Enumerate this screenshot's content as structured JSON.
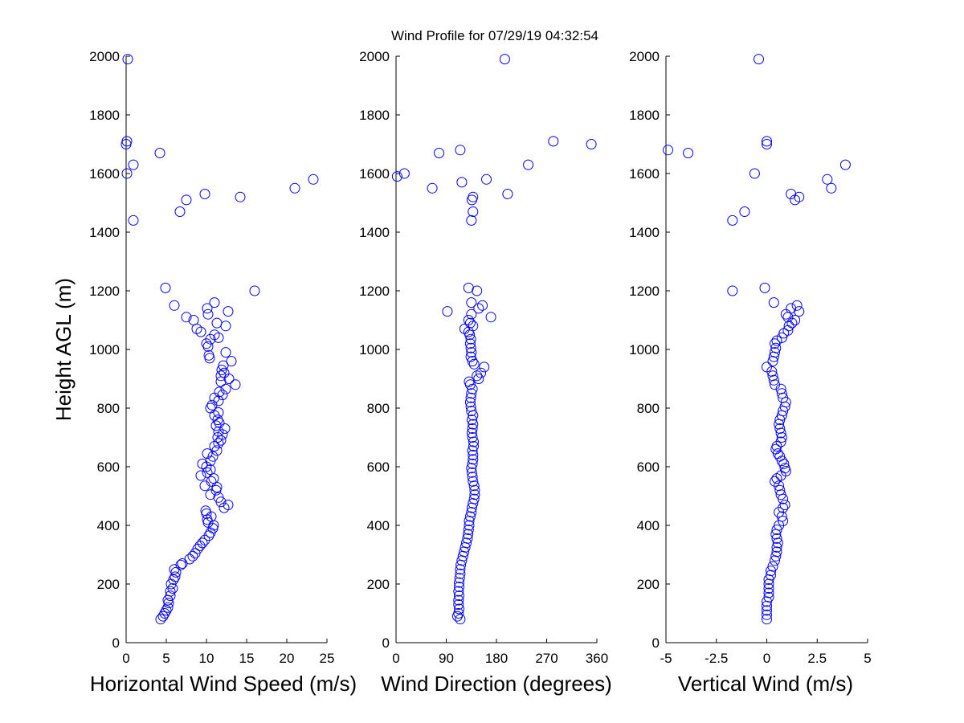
{
  "title": "Wind Profile for  07/29/19 04:32:54",
  "ylabel": "Height AGL (m)",
  "colors": {
    "marker": "#0000ff",
    "axes": "#000000",
    "background": "#ffffff"
  },
  "chart_data": [
    {
      "type": "scatter",
      "xlabel": "Horizontal Wind Speed (m/s)",
      "ylabel": "Height AGL (m)",
      "xlim": [
        0,
        25
      ],
      "ylim": [
        0,
        2000
      ],
      "xticks": [
        "0",
        "5",
        "10",
        "15",
        "20",
        "25"
      ],
      "yticks": [
        "0",
        "200",
        "400",
        "600",
        "800",
        "1000",
        "1200",
        "1400",
        "1600",
        "1800",
        "2000"
      ],
      "marker": "open-circle",
      "grid": false,
      "points": [
        [
          4.3,
          80
        ],
        [
          4.6,
          90
        ],
        [
          4.8,
          100
        ],
        [
          5.0,
          110
        ],
        [
          5.2,
          120
        ],
        [
          5.3,
          135
        ],
        [
          5.2,
          145
        ],
        [
          5.5,
          160
        ],
        [
          5.5,
          175
        ],
        [
          5.8,
          185
        ],
        [
          5.6,
          200
        ],
        [
          5.9,
          215
        ],
        [
          6.1,
          225
        ],
        [
          6.2,
          240
        ],
        [
          6.0,
          250
        ],
        [
          6.8,
          265
        ],
        [
          7.0,
          270
        ],
        [
          7.9,
          285
        ],
        [
          8.3,
          295
        ],
        [
          8.6,
          305
        ],
        [
          8.9,
          320
        ],
        [
          9.2,
          330
        ],
        [
          9.5,
          340
        ],
        [
          9.8,
          350
        ],
        [
          10.3,
          365
        ],
        [
          10.5,
          375
        ],
        [
          10.8,
          390
        ],
        [
          10.9,
          400
        ],
        [
          10.2,
          410
        ],
        [
          10.1,
          420
        ],
        [
          10.6,
          430
        ],
        [
          10.0,
          440
        ],
        [
          9.9,
          450
        ],
        [
          12.2,
          460
        ],
        [
          12.7,
          470
        ],
        [
          11.8,
          480
        ],
        [
          11.5,
          495
        ],
        [
          10.5,
          505
        ],
        [
          11.2,
          520
        ],
        [
          11.3,
          530
        ],
        [
          9.8,
          535
        ],
        [
          10.6,
          550
        ],
        [
          10.9,
          560
        ],
        [
          9.3,
          570
        ],
        [
          10.1,
          580
        ],
        [
          10.5,
          590
        ],
        [
          10.0,
          600
        ],
        [
          9.5,
          610
        ],
        [
          10.5,
          620
        ],
        [
          10.8,
          635
        ],
        [
          10.1,
          645
        ],
        [
          11.3,
          655
        ],
        [
          11.0,
          670
        ],
        [
          11.5,
          680
        ],
        [
          11.8,
          690
        ],
        [
          11.4,
          700
        ],
        [
          12.0,
          710
        ],
        [
          11.5,
          720
        ],
        [
          12.3,
          730
        ],
        [
          11.2,
          740
        ],
        [
          11.6,
          750
        ],
        [
          11.4,
          760
        ],
        [
          11.0,
          775
        ],
        [
          11.5,
          785
        ],
        [
          10.5,
          800
        ],
        [
          10.7,
          810
        ],
        [
          11.5,
          825
        ],
        [
          11.0,
          835
        ],
        [
          12.0,
          845
        ],
        [
          11.6,
          855
        ],
        [
          12.4,
          865
        ],
        [
          13.6,
          880
        ],
        [
          11.8,
          890
        ],
        [
          12.8,
          900
        ],
        [
          11.8,
          910
        ],
        [
          12.2,
          920
        ],
        [
          11.9,
          930
        ],
        [
          12.1,
          945
        ],
        [
          13.1,
          960
        ],
        [
          12.4,
          990
        ],
        [
          10.4,
          970
        ],
        [
          10.3,
          980
        ],
        [
          10.2,
          1010
        ],
        [
          10.0,
          1020
        ],
        [
          10.5,
          1035
        ],
        [
          11.5,
          1040
        ],
        [
          11.0,
          1050
        ],
        [
          9.3,
          1060
        ],
        [
          8.8,
          1070
        ],
        [
          12.4,
          1080
        ],
        [
          11.3,
          1090
        ],
        [
          8.4,
          1100
        ],
        [
          7.5,
          1110
        ],
        [
          10.2,
          1120
        ],
        [
          12.7,
          1130
        ],
        [
          10.1,
          1140
        ],
        [
          6.0,
          1150
        ],
        [
          11.0,
          1160
        ],
        [
          4.9,
          1210
        ],
        [
          16.0,
          1200
        ],
        [
          0.9,
          1440
        ],
        [
          6.7,
          1470
        ],
        [
          7.5,
          1510
        ],
        [
          14.2,
          1520
        ],
        [
          9.8,
          1530
        ],
        [
          21.0,
          1550
        ],
        [
          23.3,
          1580
        ],
        [
          0.1,
          1600
        ],
        [
          0.9,
          1630
        ],
        [
          4.2,
          1670
        ],
        [
          0.0,
          1700
        ],
        [
          0.1,
          1710
        ],
        [
          0.2,
          1990
        ]
      ]
    },
    {
      "type": "scatter",
      "xlabel": "Wind Direction (degrees)",
      "ylabel": "",
      "xlim": [
        0,
        360
      ],
      "ylim": [
        0,
        2000
      ],
      "xticks": [
        "0",
        "90",
        "180",
        "270",
        "360"
      ],
      "yticks": [
        "0",
        "200",
        "400",
        "600",
        "800",
        "1000",
        "1200",
        "1400",
        "1600",
        "1800",
        "2000"
      ],
      "marker": "open-circle",
      "grid": false,
      "points": [
        [
          115,
          80
        ],
        [
          110,
          90
        ],
        [
          112,
          100
        ],
        [
          113,
          115
        ],
        [
          112,
          130
        ],
        [
          112,
          145
        ],
        [
          113,
          160
        ],
        [
          112,
          175
        ],
        [
          113,
          190
        ],
        [
          113,
          205
        ],
        [
          114,
          220
        ],
        [
          115,
          235
        ],
        [
          115,
          250
        ],
        [
          116,
          265
        ],
        [
          118,
          280
        ],
        [
          120,
          295
        ],
        [
          122,
          310
        ],
        [
          124,
          325
        ],
        [
          126,
          340
        ],
        [
          128,
          355
        ],
        [
          129,
          370
        ],
        [
          130,
          385
        ],
        [
          131,
          400
        ],
        [
          131,
          415
        ],
        [
          133,
          430
        ],
        [
          135,
          445
        ],
        [
          136,
          460
        ],
        [
          138,
          475
        ],
        [
          140,
          490
        ],
        [
          141,
          505
        ],
        [
          141,
          520
        ],
        [
          140,
          535
        ],
        [
          138,
          550
        ],
        [
          137,
          565
        ],
        [
          136,
          580
        ],
        [
          135,
          595
        ],
        [
          137,
          610
        ],
        [
          138,
          625
        ],
        [
          138,
          640
        ],
        [
          137,
          655
        ],
        [
          139,
          670
        ],
        [
          139,
          685
        ],
        [
          137,
          700
        ],
        [
          136,
          715
        ],
        [
          137,
          730
        ],
        [
          138,
          745
        ],
        [
          136,
          760
        ],
        [
          138,
          775
        ],
        [
          135,
          790
        ],
        [
          134,
          805
        ],
        [
          133,
          820
        ],
        [
          134,
          835
        ],
        [
          135,
          850
        ],
        [
          137,
          865
        ],
        [
          133,
          880
        ],
        [
          131,
          890
        ],
        [
          148,
          900
        ],
        [
          145,
          910
        ],
        [
          152,
          920
        ],
        [
          158,
          940
        ],
        [
          140,
          950
        ],
        [
          137,
          960
        ],
        [
          134,
          975
        ],
        [
          135,
          990
        ],
        [
          134,
          1005
        ],
        [
          133,
          1020
        ],
        [
          134,
          1035
        ],
        [
          132,
          1050
        ],
        [
          130,
          1060
        ],
        [
          123,
          1070
        ],
        [
          138,
          1080
        ],
        [
          133,
          1090
        ],
        [
          130,
          1100
        ],
        [
          170,
          1110
        ],
        [
          135,
          1120
        ],
        [
          92,
          1130
        ],
        [
          148,
          1140
        ],
        [
          155,
          1150
        ],
        [
          135,
          1160
        ],
        [
          145,
          1200
        ],
        [
          130,
          1210
        ],
        [
          135,
          1440
        ],
        [
          138,
          1470
        ],
        [
          136,
          1510
        ],
        [
          138,
          1520
        ],
        [
          200,
          1530
        ],
        [
          65,
          1550
        ],
        [
          118,
          1570
        ],
        [
          162,
          1580
        ],
        [
          2,
          1590
        ],
        [
          15,
          1600
        ],
        [
          237,
          1630
        ],
        [
          77,
          1670
        ],
        [
          115,
          1680
        ],
        [
          350,
          1700
        ],
        [
          282,
          1710
        ],
        [
          195,
          1990
        ]
      ]
    },
    {
      "type": "scatter",
      "xlabel": "Vertical Wind (m/s)",
      "ylabel": "",
      "xlim": [
        -5,
        5
      ],
      "ylim": [
        0,
        2000
      ],
      "xticks": [
        "-5",
        "-2.5",
        "0",
        "2.5",
        "5"
      ],
      "yticks": [
        "0",
        "200",
        "400",
        "600",
        "800",
        "1000",
        "1200",
        "1400",
        "1600",
        "1800",
        "2000"
      ],
      "marker": "open-circle",
      "grid": false,
      "points": [
        [
          0.0,
          80
        ],
        [
          0.0,
          95
        ],
        [
          0.0,
          110
        ],
        [
          0.0,
          125
        ],
        [
          0.0,
          140
        ],
        [
          0.1,
          155
        ],
        [
          0.1,
          170
        ],
        [
          0.1,
          185
        ],
        [
          0.1,
          200
        ],
        [
          0.1,
          215
        ],
        [
          0.2,
          230
        ],
        [
          0.2,
          245
        ],
        [
          0.3,
          260
        ],
        [
          0.4,
          280
        ],
        [
          0.45,
          295
        ],
        [
          0.5,
          310
        ],
        [
          0.5,
          325
        ],
        [
          0.55,
          340
        ],
        [
          0.5,
          355
        ],
        [
          0.45,
          370
        ],
        [
          0.5,
          385
        ],
        [
          0.6,
          400
        ],
        [
          0.8,
          415
        ],
        [
          0.75,
          430
        ],
        [
          0.6,
          445
        ],
        [
          0.8,
          460
        ],
        [
          0.9,
          470
        ],
        [
          0.8,
          490
        ],
        [
          0.7,
          505
        ],
        [
          0.65,
          520
        ],
        [
          0.6,
          535
        ],
        [
          0.4,
          550
        ],
        [
          0.5,
          560
        ],
        [
          0.7,
          570
        ],
        [
          0.95,
          585
        ],
        [
          0.9,
          595
        ],
        [
          0.85,
          610
        ],
        [
          0.75,
          620
        ],
        [
          0.65,
          635
        ],
        [
          0.55,
          645
        ],
        [
          0.45,
          660
        ],
        [
          0.5,
          670
        ],
        [
          0.7,
          685
        ],
        [
          0.75,
          700
        ],
        [
          0.7,
          715
        ],
        [
          0.65,
          730
        ],
        [
          0.6,
          745
        ],
        [
          0.65,
          760
        ],
        [
          0.75,
          775
        ],
        [
          0.8,
          790
        ],
        [
          0.9,
          805
        ],
        [
          0.95,
          820
        ],
        [
          0.8,
          835
        ],
        [
          0.75,
          850
        ],
        [
          0.7,
          865
        ],
        [
          0.4,
          880
        ],
        [
          0.35,
          895
        ],
        [
          0.3,
          910
        ],
        [
          0.25,
          925
        ],
        [
          0.0,
          940
        ],
        [
          0.3,
          960
        ],
        [
          0.35,
          975
        ],
        [
          0.4,
          990
        ],
        [
          0.45,
          1005
        ],
        [
          0.4,
          1020
        ],
        [
          0.5,
          1030
        ],
        [
          0.75,
          1040
        ],
        [
          0.85,
          1055
        ],
        [
          1.05,
          1065
        ],
        [
          1.1,
          1080
        ],
        [
          1.25,
          1090
        ],
        [
          1.4,
          1100
        ],
        [
          1.05,
          1110
        ],
        [
          0.95,
          1120
        ],
        [
          1.6,
          1130
        ],
        [
          1.2,
          1140
        ],
        [
          1.5,
          1150
        ],
        [
          0.35,
          1160
        ],
        [
          -1.7,
          1200
        ],
        [
          -0.1,
          1210
        ],
        [
          -1.7,
          1440
        ],
        [
          -1.1,
          1470
        ],
        [
          1.4,
          1510
        ],
        [
          1.6,
          1520
        ],
        [
          1.2,
          1530
        ],
        [
          3.2,
          1550
        ],
        [
          3.0,
          1580
        ],
        [
          -0.6,
          1600
        ],
        [
          3.9,
          1630
        ],
        [
          -3.9,
          1670
        ],
        [
          -4.9,
          1680
        ],
        [
          0.0,
          1700
        ],
        [
          0.0,
          1710
        ],
        [
          -0.4,
          1990
        ]
      ]
    }
  ]
}
